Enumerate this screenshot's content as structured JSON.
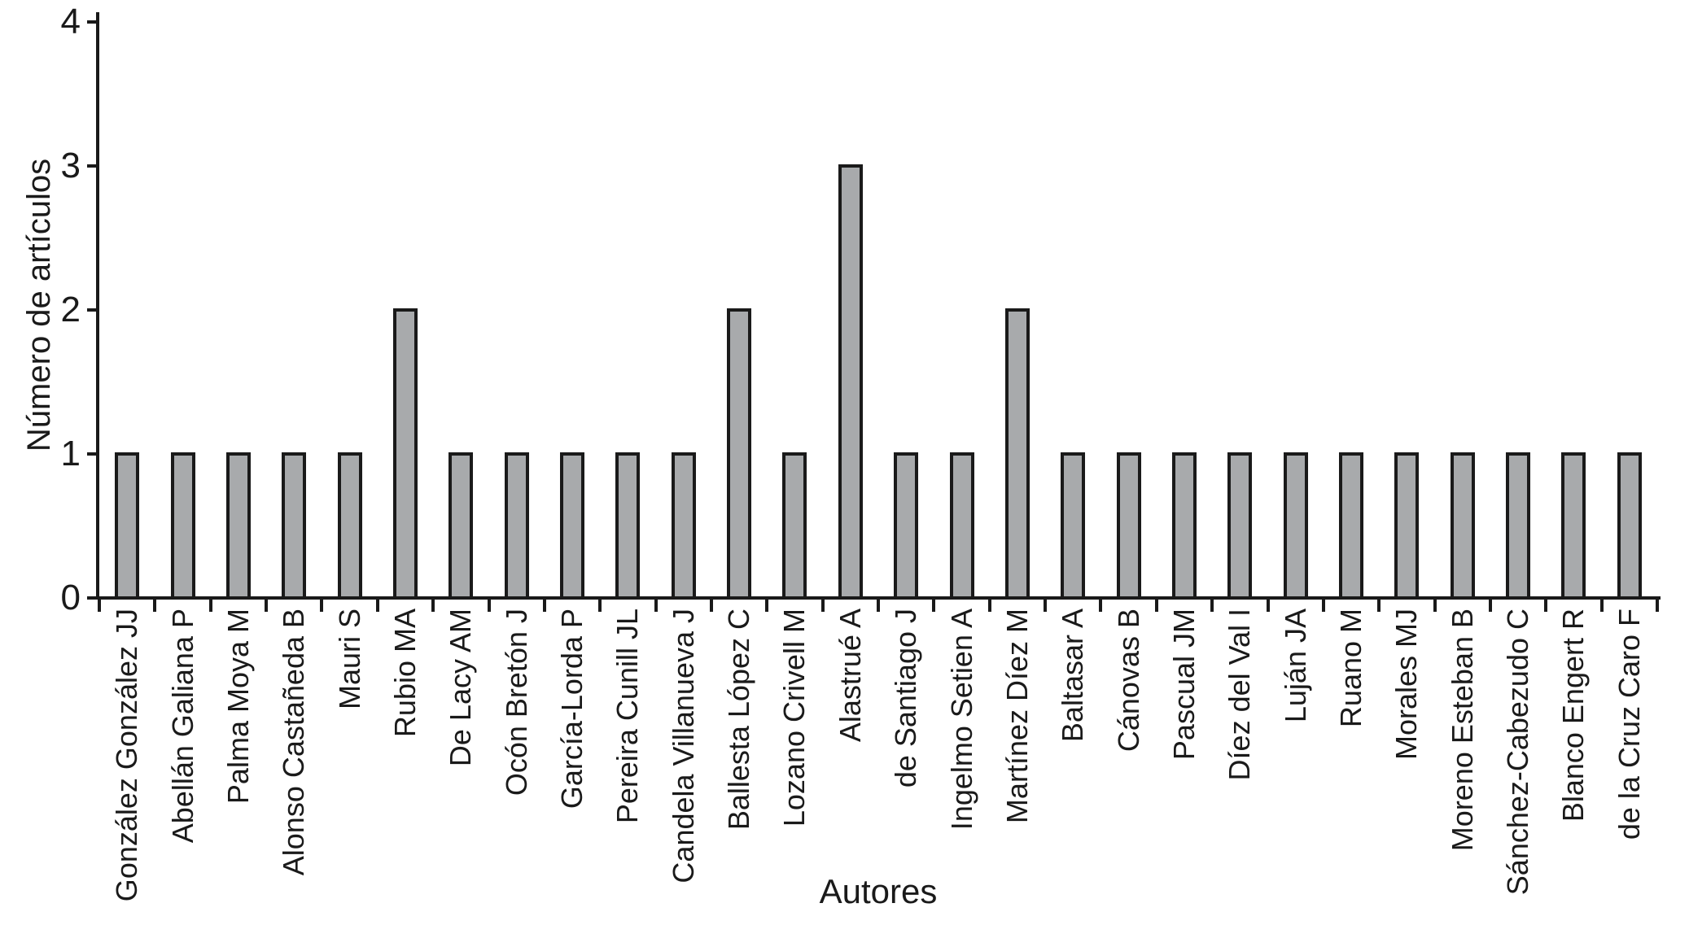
{
  "chart_data": {
    "type": "bar",
    "title": "",
    "xlabel": "Autores",
    "ylabel": "Número de artículos",
    "categories": [
      "González González JJ",
      "Abellán Galiana P",
      "Palma Moya M",
      "Alonso Castañeda B",
      "Mauri S",
      "Rubio MA",
      "De Lacy AM",
      "Ocón Bretón J",
      "García-Lorda P",
      "Pereira Cunill JL",
      "Candela Villanueva J",
      "Ballesta López C",
      "Lozano Crivell M",
      "Alastrué A",
      "de Santiago J",
      "Ingelmo Setien A",
      "Martínez Díez M",
      "Baltasar A",
      "Cánovas B",
      "Pascual JM",
      "Díez del Val I",
      "Luján JA",
      "Ruano M",
      "Morales MJ",
      "Moreno Esteban B",
      "Sánchez-Cabezudo C",
      "Blanco Engert R",
      "de la Cruz Caro F"
    ],
    "values": [
      1,
      1,
      1,
      1,
      1,
      2,
      1,
      1,
      1,
      1,
      1,
      2,
      1,
      3,
      1,
      1,
      2,
      1,
      1,
      1,
      1,
      1,
      1,
      1,
      1,
      1,
      1,
      1
    ],
    "ylim": [
      0,
      4
    ],
    "yticks": [
      0,
      1,
      2,
      3,
      4
    ],
    "grid": false,
    "legend": null,
    "bar_color": "#a8aaac",
    "bar_border_color": "#1a1a1a",
    "axis_color": "#1a1a1a"
  }
}
